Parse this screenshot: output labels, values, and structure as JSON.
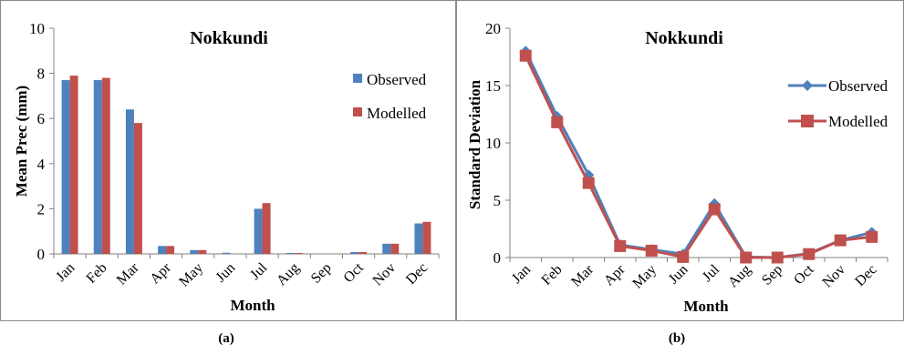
{
  "captions": {
    "a": "(a)",
    "b": "(b)"
  },
  "colors": {
    "observed": "#4f81bd",
    "modelled": "#c0504d",
    "axis": "#808080"
  },
  "chart_data": [
    {
      "id": "a",
      "type": "bar",
      "title": "Nokkundi",
      "xlabel": "Month",
      "ylabel": "Mean Prec (mm)",
      "ylim": [
        0,
        10
      ],
      "yticks": [
        "0",
        "2",
        "4",
        "6",
        "8",
        "10"
      ],
      "yticks_values": [
        0,
        2,
        4,
        6,
        8,
        10
      ],
      "grid": false,
      "legend": "right",
      "categories": [
        "Jan",
        "Feb",
        "Mar",
        "Apr",
        "May",
        "Jun",
        "Jul",
        "Aug",
        "Sep",
        "Oct",
        "Nov",
        "Dec"
      ],
      "series": [
        {
          "name": "Observed",
          "values": [
            7.7,
            7.7,
            6.4,
            0.35,
            0.17,
            0.05,
            2.0,
            0.04,
            0.0,
            0.08,
            0.45,
            1.35
          ]
        },
        {
          "name": "Modelled",
          "values": [
            7.9,
            7.8,
            5.8,
            0.35,
            0.17,
            0.0,
            2.25,
            0.04,
            0.0,
            0.08,
            0.45,
            1.42
          ]
        }
      ]
    },
    {
      "id": "b",
      "type": "line",
      "title": "Nokkundi",
      "xlabel": "Month",
      "ylabel": "Standard Deviation",
      "ylim": [
        0,
        20
      ],
      "yticks": [
        "0",
        "5",
        "10",
        "15",
        "20"
      ],
      "yticks_values": [
        0,
        5,
        10,
        15,
        20
      ],
      "grid": false,
      "legend": "right",
      "categories": [
        "Jan",
        "Feb",
        "Mar",
        "Apr",
        "May",
        "Jun",
        "Jul",
        "Aug",
        "Sep",
        "Oct",
        "Nov",
        "Dec"
      ],
      "series": [
        {
          "name": "Observed",
          "values": [
            18.0,
            12.3,
            7.2,
            1.1,
            0.7,
            0.3,
            4.7,
            0.05,
            0.0,
            0.35,
            1.5,
            2.2
          ]
        },
        {
          "name": "Modelled",
          "values": [
            17.6,
            11.8,
            6.5,
            1.0,
            0.6,
            0.05,
            4.2,
            0.0,
            0.0,
            0.3,
            1.5,
            1.8
          ]
        }
      ]
    }
  ]
}
